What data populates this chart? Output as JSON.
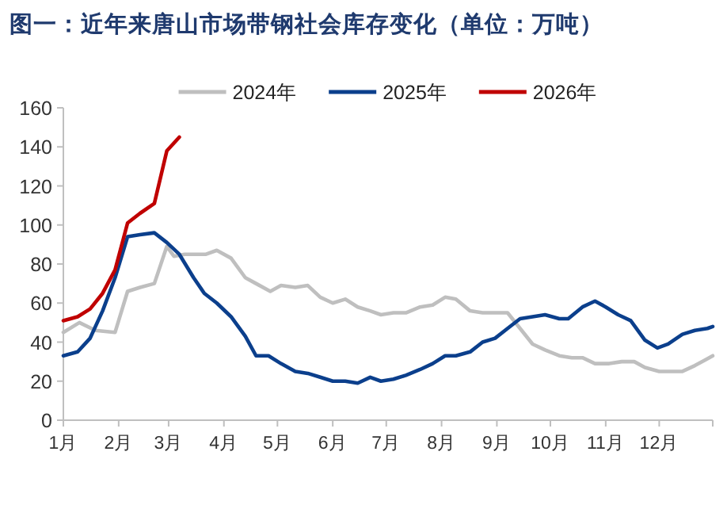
{
  "chart_data": {
    "type": "line",
    "title": "图一：近年来唐山市场带钢社会库存变化（单位：万吨）",
    "legend": "top",
    "marker": "none",
    "line_style": "solid",
    "grid": false,
    "xlim": [
      "--01-01",
      "--12-31"
    ],
    "ylim": [
      0,
      160
    ],
    "yticks": [
      0,
      20,
      40,
      60,
      80,
      100,
      120,
      140,
      160
    ],
    "xticks": [
      {
        "value": "--01-01",
        "label": "1月"
      },
      {
        "value": "--02-01",
        "label": "2月"
      },
      {
        "value": "--03-01",
        "label": "3月"
      },
      {
        "value": "--04-01",
        "label": "4月"
      },
      {
        "value": "--05-01",
        "label": "5月"
      },
      {
        "value": "--06-01",
        "label": "6月"
      },
      {
        "value": "--07-01",
        "label": "7月"
      },
      {
        "value": "--08-01",
        "label": "8月"
      },
      {
        "value": "--09-01",
        "label": "9月"
      },
      {
        "value": "--10-01",
        "label": "10月"
      },
      {
        "value": "--11-01",
        "label": "11月"
      },
      {
        "value": "--12-01",
        "label": "12月"
      },
      {
        "value": "--12-31",
        "label": null
      }
    ],
    "series": [
      {
        "name": "2024年",
        "color": "#bfbfbf",
        "x": [
          "--01-01",
          "--01-10",
          "--01-19",
          "--01-30",
          "--02-06",
          "--02-13",
          "--02-21",
          "--02-28",
          "--03-04",
          "--03-10",
          "--03-16",
          "--03-22",
          "--03-28",
          "--04-05",
          "--04-13",
          "--04-19",
          "--04-27",
          "--05-03",
          "--05-11",
          "--05-18",
          "--05-25",
          "--06-01",
          "--06-08",
          "--06-15",
          "--06-22",
          "--06-28",
          "--07-05",
          "--07-12",
          "--07-20",
          "--07-27",
          "--08-03",
          "--08-09",
          "--08-17",
          "--08-24",
          "--08-31",
          "--09-07",
          "--09-14",
          "--09-21",
          "--09-28",
          "--10-06",
          "--10-13",
          "--10-19",
          "--10-26",
          "--11-03",
          "--11-10",
          "--11-17",
          "--11-23",
          "--12-01",
          "--12-08",
          "--12-14",
          "--12-21",
          "--12-27",
          "--12-31"
        ],
        "values": [
          45,
          50,
          46,
          45,
          66,
          68,
          70,
          89,
          84,
          85,
          85,
          85,
          87,
          83,
          73,
          70,
          66,
          69,
          68,
          69,
          63,
          60,
          62,
          58,
          56,
          54,
          55,
          55,
          58,
          59,
          63,
          62,
          56,
          55,
          55,
          55,
          47,
          39,
          36,
          33,
          32,
          32,
          29,
          29,
          30,
          30,
          27,
          25,
          25,
          25,
          28,
          31,
          33
        ]
      },
      {
        "name": "2025年",
        "color": "#0b3f8c",
        "x": [
          "--01-01",
          "--01-09",
          "--01-16",
          "--01-23",
          "--01-30",
          "--02-06",
          "--02-13",
          "--02-21",
          "--02-28",
          "--03-07",
          "--03-15",
          "--03-21",
          "--03-28",
          "--04-05",
          "--04-13",
          "--04-19",
          "--04-26",
          "--05-03",
          "--05-11",
          "--05-18",
          "--05-25",
          "--06-01",
          "--06-08",
          "--06-15",
          "--06-22",
          "--06-28",
          "--07-05",
          "--07-12",
          "--07-20",
          "--07-27",
          "--08-03",
          "--08-09",
          "--08-17",
          "--08-24",
          "--08-31",
          "--09-07",
          "--09-14",
          "--09-21",
          "--09-28",
          "--10-06",
          "--10-11",
          "--10-19",
          "--10-26",
          "--11-01",
          "--11-08",
          "--11-15",
          "--11-23",
          "--11-30",
          "--12-06",
          "--12-14",
          "--12-21",
          "--12-28",
          "--12-31"
        ],
        "values": [
          33,
          35,
          42,
          56,
          73,
          94,
          95,
          96,
          91,
          85,
          73,
          65,
          60,
          53,
          43,
          33,
          33,
          29,
          25,
          24,
          22,
          20,
          20,
          19,
          22,
          20,
          21,
          23,
          26,
          29,
          33,
          33,
          35,
          40,
          42,
          47,
          52,
          53,
          54,
          52,
          52,
          58,
          61,
          58,
          54,
          51,
          41,
          37,
          39,
          44,
          46,
          47,
          48
        ]
      },
      {
        "name": "2026年",
        "color": "#c00000",
        "x": [
          "--01-01",
          "--01-09",
          "--01-16",
          "--01-23",
          "--01-30",
          "--02-06",
          "--02-13",
          "--02-21",
          "--02-28",
          "--03-07"
        ],
        "values": [
          51,
          53,
          57,
          65,
          77,
          101,
          106,
          111,
          138,
          145
        ]
      }
    ]
  }
}
